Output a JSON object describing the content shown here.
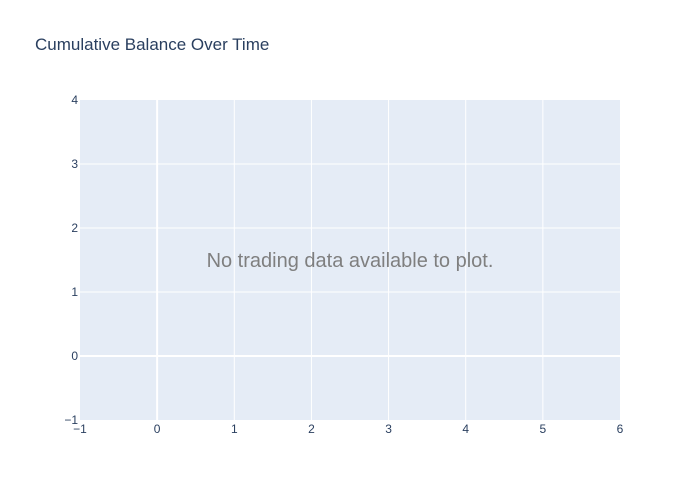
{
  "chart_data": {
    "type": "line",
    "title": "Cumulative Balance Over Time",
    "xlabel": "",
    "ylabel": "",
    "xlim": [
      -1,
      6
    ],
    "ylim": [
      -1,
      4
    ],
    "x_ticks": [
      -1,
      0,
      1,
      2,
      3,
      4,
      5,
      6
    ],
    "y_ticks": [
      -1,
      0,
      1,
      2,
      3,
      4
    ],
    "x_tick_labels": [
      "−1",
      "0",
      "1",
      "2",
      "3",
      "4",
      "5",
      "6"
    ],
    "y_tick_labels": [
      "−1",
      "0",
      "1",
      "2",
      "3",
      "4"
    ],
    "grid": true,
    "series": [],
    "annotation": "No trading data available to plot.",
    "colors": {
      "plot_background": "#e5ecf6",
      "grid": "#ffffff",
      "title": "#2a3f5f",
      "tick": "#2a3f5f",
      "annotation": "#7f7f7f"
    }
  }
}
